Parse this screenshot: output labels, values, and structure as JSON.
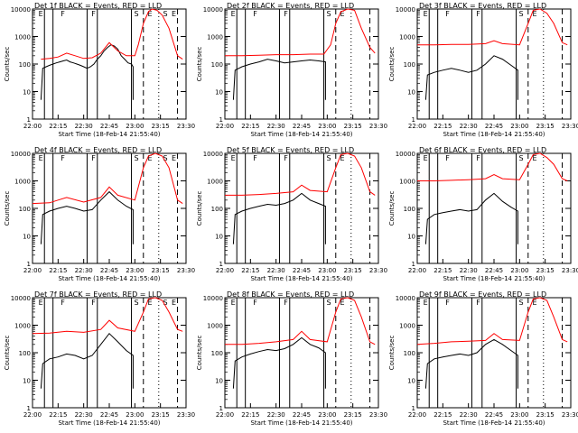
{
  "colors": {
    "events": "#000000",
    "lld": "#ff0000",
    "background": "#ffffff",
    "axes": "#000000"
  },
  "chart_data": [
    {
      "type": "line",
      "title": "Det 1f BLACK = Events, RED = LLD",
      "xlabel": "Start Time (18-Feb-14 21:55:40)",
      "ylabel": "Counts/sec",
      "yscale": "log",
      "ylim": [
        1,
        10000
      ],
      "xlim": [
        "22:00",
        "23:30"
      ],
      "xticks": [
        "22:00",
        "22:15",
        "22:30",
        "22:45",
        "23:00",
        "23:15",
        "23:30"
      ],
      "yticks": [
        "1",
        "10",
        "100",
        "1000",
        "10000"
      ],
      "annotations": [
        "E",
        "F",
        "F",
        "S",
        "E",
        "S",
        "E"
      ],
      "series": [
        {
          "name": "Events",
          "color": "#000000",
          "x": [
            "22:05",
            "22:06",
            "22:08",
            "22:10",
            "22:12",
            "22:14",
            "22:16",
            "22:18",
            "22:20",
            "22:22",
            "22:24",
            "22:26",
            "22:28",
            "22:30",
            "22:32",
            "22:34",
            "22:36",
            "22:38",
            "22:40",
            "22:42",
            "22:44",
            "22:46",
            "22:48",
            "22:50",
            "22:52",
            "22:54",
            "22:56",
            "22:58",
            "22:59",
            "22:59"
          ],
          "y": [
            5,
            70,
            80,
            90,
            100,
            110,
            120,
            130,
            140,
            120,
            110,
            100,
            90,
            80,
            70,
            80,
            100,
            150,
            200,
            300,
            400,
            500,
            450,
            350,
            200,
            150,
            110,
            100,
            80,
            5
          ]
        },
        {
          "name": "LLD",
          "color": "#ff0000",
          "x": [
            "22:05",
            "22:10",
            "22:15",
            "22:20",
            "22:25",
            "22:30",
            "22:35",
            "22:40",
            "22:45",
            "22:50",
            "22:55",
            "23:00",
            "23:02",
            "23:05",
            "23:08",
            "23:10",
            "23:13",
            "23:16",
            "23:20",
            "23:25",
            "23:28"
          ],
          "y": [
            150,
            160,
            180,
            250,
            200,
            160,
            170,
            250,
            600,
            300,
            200,
            200,
            500,
            3000,
            8000,
            10000,
            9000,
            6000,
            2000,
            200,
            150
          ]
        }
      ]
    },
    {
      "type": "line",
      "title": "Det 2f BLACK = Events, RED = LLD",
      "xlabel": "Start Time (18-Feb-14 21:55:40)",
      "ylabel": "Counts/sec",
      "yscale": "log",
      "ylim": [
        1,
        10000
      ],
      "xlim": [
        "22:00",
        "23:30"
      ],
      "xticks": [
        "22:00",
        "22:15",
        "22:30",
        "22:45",
        "23:00",
        "23:15",
        "23:30"
      ],
      "yticks": [
        "1",
        "10",
        "100",
        "1000",
        "10000"
      ],
      "annotations": [
        "E",
        "F",
        "F",
        "S",
        "E"
      ],
      "series": [
        {
          "name": "Events",
          "color": "#000000",
          "x": [
            "22:05",
            "22:06",
            "22:10",
            "22:15",
            "22:20",
            "22:25",
            "22:30",
            "22:35",
            "22:40",
            "22:45",
            "22:50",
            "22:55",
            "22:59",
            "22:59"
          ],
          "y": [
            5,
            60,
            80,
            100,
            120,
            150,
            130,
            110,
            120,
            130,
            140,
            130,
            120,
            5
          ]
        },
        {
          "name": "LLD",
          "color": "#ff0000",
          "x": [
            "22:00",
            "22:10",
            "22:20",
            "22:30",
            "22:40",
            "22:50",
            "22:58",
            "23:02",
            "23:05",
            "23:08",
            "23:12",
            "23:16",
            "23:20",
            "23:25",
            "23:28"
          ],
          "y": [
            200,
            200,
            210,
            220,
            220,
            230,
            230,
            500,
            3000,
            8000,
            10000,
            9000,
            2000,
            400,
            250
          ]
        }
      ]
    },
    {
      "type": "line",
      "title": "Det 3f BLACK = Events, RED = LLD",
      "xlabel": "Start Time (18-Feb-14 21:55:40)",
      "ylabel": "Counts/sec",
      "yscale": "log",
      "ylim": [
        1,
        10000
      ],
      "xlim": [
        "22:00",
        "23:30"
      ],
      "xticks": [
        "22:00",
        "22:15",
        "22:30",
        "22:45",
        "23:00",
        "23:15",
        "23:30"
      ],
      "yticks": [
        "1",
        "10",
        "100",
        "1000",
        "10000"
      ],
      "annotations": [
        "E",
        "F",
        "F",
        "S",
        "E"
      ],
      "series": [
        {
          "name": "Events",
          "color": "#000000",
          "x": [
            "22:05",
            "22:06",
            "22:10",
            "22:15",
            "22:20",
            "22:25",
            "22:30",
            "22:35",
            "22:40",
            "22:45",
            "22:50",
            "22:55",
            "22:59",
            "22:59"
          ],
          "y": [
            5,
            40,
            50,
            60,
            70,
            60,
            50,
            60,
            100,
            200,
            150,
            90,
            60,
            5
          ]
        },
        {
          "name": "LLD",
          "color": "#ff0000",
          "x": [
            "22:00",
            "22:10",
            "22:20",
            "22:30",
            "22:40",
            "22:45",
            "22:50",
            "23:00",
            "23:05",
            "23:08",
            "23:12",
            "23:16",
            "23:20",
            "23:25",
            "23:28"
          ],
          "y": [
            500,
            500,
            520,
            520,
            550,
            700,
            550,
            500,
            3000,
            9000,
            10000,
            7000,
            3000,
            600,
            500
          ]
        }
      ]
    },
    {
      "type": "line",
      "title": "Det 4f BLACK = Events, RED = LLD",
      "xlabel": "Start Time (18-Feb-14 21:55:40)",
      "ylabel": "Counts/sec",
      "yscale": "log",
      "ylim": [
        1,
        10000
      ],
      "xlim": [
        "22:00",
        "23:30"
      ],
      "xticks": [
        "22:00",
        "22:15",
        "22:30",
        "22:45",
        "23:00",
        "23:15",
        "23:30"
      ],
      "yticks": [
        "1",
        "10",
        "100",
        "1000",
        "10000"
      ],
      "annotations": [
        "E",
        "F",
        "F",
        "S",
        "E",
        "S",
        "E"
      ],
      "series": [
        {
          "name": "Events",
          "color": "#000000",
          "x": [
            "22:05",
            "22:06",
            "22:10",
            "22:15",
            "22:20",
            "22:25",
            "22:30",
            "22:35",
            "22:40",
            "22:45",
            "22:50",
            "22:55",
            "22:59",
            "22:59"
          ],
          "y": [
            5,
            60,
            80,
            100,
            120,
            100,
            80,
            90,
            200,
            400,
            200,
            120,
            90,
            5
          ]
        },
        {
          "name": "LLD",
          "color": "#ff0000",
          "x": [
            "22:00",
            "22:10",
            "22:15",
            "22:20",
            "22:30",
            "22:40",
            "22:45",
            "22:50",
            "23:00",
            "23:05",
            "23:08",
            "23:12",
            "23:16",
            "23:20",
            "23:25",
            "23:28"
          ],
          "y": [
            150,
            160,
            200,
            250,
            170,
            250,
            600,
            300,
            200,
            3000,
            8000,
            10000,
            8000,
            3000,
            200,
            150
          ]
        }
      ]
    },
    {
      "type": "line",
      "title": "Det 5f BLACK = Events, RED = LLD",
      "xlabel": "Start Time (18-Feb-14 21:55:40)",
      "ylabel": "Counts/sec",
      "yscale": "log",
      "ylim": [
        1,
        10000
      ],
      "xlim": [
        "22:00",
        "23:30"
      ],
      "xticks": [
        "22:00",
        "22:15",
        "22:30",
        "22:45",
        "23:00",
        "23:15",
        "23:30"
      ],
      "yticks": [
        "1",
        "10",
        "100",
        "1000",
        "10000"
      ],
      "annotations": [
        "E",
        "F",
        "F",
        "S",
        "E"
      ],
      "series": [
        {
          "name": "Events",
          "color": "#000000",
          "x": [
            "22:05",
            "22:06",
            "22:10",
            "22:15",
            "22:20",
            "22:25",
            "22:30",
            "22:35",
            "22:40",
            "22:45",
            "22:50",
            "22:55",
            "22:59",
            "22:59"
          ],
          "y": [
            5,
            60,
            80,
            100,
            120,
            140,
            130,
            150,
            200,
            350,
            200,
            150,
            120,
            5
          ]
        },
        {
          "name": "LLD",
          "color": "#ff0000",
          "x": [
            "22:00",
            "22:10",
            "22:20",
            "22:30",
            "22:40",
            "22:45",
            "22:50",
            "23:00",
            "23:05",
            "23:08",
            "23:12",
            "23:16",
            "23:20",
            "23:25",
            "23:28"
          ],
          "y": [
            300,
            300,
            320,
            350,
            400,
            700,
            450,
            400,
            3000,
            9000,
            10000,
            8000,
            3000,
            400,
            300
          ]
        }
      ]
    },
    {
      "type": "line",
      "title": "Det 6f BLACK = Events, RED = LLD",
      "xlabel": "Start Time (18-Feb-14 21:55:40)",
      "ylabel": "Counts/sec",
      "yscale": "log",
      "ylim": [
        1,
        10000
      ],
      "xlim": [
        "22:00",
        "23:30"
      ],
      "xticks": [
        "22:00",
        "22:15",
        "22:30",
        "22:45",
        "23:00",
        "23:15",
        "23:30"
      ],
      "yticks": [
        "1",
        "10",
        "100",
        "1000",
        "10000"
      ],
      "annotations": [
        "E",
        "F",
        "F",
        "S",
        "E"
      ],
      "series": [
        {
          "name": "Events",
          "color": "#000000",
          "x": [
            "22:05",
            "22:06",
            "22:10",
            "22:15",
            "22:20",
            "22:25",
            "22:30",
            "22:35",
            "22:40",
            "22:45",
            "22:50",
            "22:55",
            "22:59",
            "22:59"
          ],
          "y": [
            5,
            40,
            60,
            70,
            80,
            90,
            80,
            90,
            200,
            350,
            180,
            110,
            80,
            5
          ]
        },
        {
          "name": "LLD",
          "color": "#ff0000",
          "x": [
            "22:00",
            "22:10",
            "22:20",
            "22:30",
            "22:40",
            "22:45",
            "22:50",
            "23:00",
            "23:05",
            "23:08",
            "23:12",
            "23:16",
            "23:20",
            "23:25",
            "23:28"
          ],
          "y": [
            1000,
            1000,
            1050,
            1100,
            1200,
            1700,
            1200,
            1100,
            4000,
            9000,
            10000,
            7000,
            4000,
            1200,
            1000
          ]
        }
      ]
    },
    {
      "type": "line",
      "title": "Det 7f BLACK = Events, RED = LLD",
      "xlabel": "Start Time (18-Feb-14 21:55:40)",
      "ylabel": "Counts/sec",
      "yscale": "log",
      "ylim": [
        1,
        10000
      ],
      "xlim": [
        "22:00",
        "23:30"
      ],
      "xticks": [
        "22:00",
        "22:15",
        "22:30",
        "22:45",
        "23:00",
        "23:15",
        "23:30"
      ],
      "yticks": [
        "1",
        "10",
        "100",
        "1000",
        "10000"
      ],
      "annotations": [
        "E",
        "F",
        "F",
        "S",
        "E",
        "S",
        "E"
      ],
      "series": [
        {
          "name": "Events",
          "color": "#000000",
          "x": [
            "22:05",
            "22:06",
            "22:10",
            "22:15",
            "22:20",
            "22:25",
            "22:30",
            "22:35",
            "22:40",
            "22:45",
            "22:50",
            "22:55",
            "22:59",
            "22:59"
          ],
          "y": [
            5,
            40,
            60,
            70,
            90,
            80,
            60,
            80,
            200,
            500,
            250,
            120,
            80,
            5
          ]
        },
        {
          "name": "LLD",
          "color": "#ff0000",
          "x": [
            "22:00",
            "22:10",
            "22:20",
            "22:30",
            "22:40",
            "22:45",
            "22:50",
            "23:00",
            "23:05",
            "23:08",
            "23:12",
            "23:16",
            "23:20",
            "23:25",
            "23:28"
          ],
          "y": [
            500,
            520,
            600,
            550,
            700,
            1500,
            800,
            600,
            3000,
            9000,
            10000,
            8000,
            3000,
            700,
            600
          ]
        }
      ]
    },
    {
      "type": "line",
      "title": "Det 8f BLACK = Events, RED = LLD",
      "xlabel": "Start Time (18-Feb-14 21:55:40)",
      "ylabel": "Counts/sec",
      "yscale": "log",
      "ylim": [
        1,
        10000
      ],
      "xlim": [
        "22:00",
        "23:30"
      ],
      "xticks": [
        "22:00",
        "22:15",
        "22:30",
        "22:45",
        "23:00",
        "23:15",
        "23:30"
      ],
      "yticks": [
        "1",
        "10",
        "100",
        "1000",
        "10000"
      ],
      "annotations": [
        "E",
        "F",
        "F",
        "S",
        "E"
      ],
      "series": [
        {
          "name": "Events",
          "color": "#000000",
          "x": [
            "22:05",
            "22:06",
            "22:10",
            "22:15",
            "22:20",
            "22:25",
            "22:30",
            "22:35",
            "22:40",
            "22:45",
            "22:50",
            "22:55",
            "22:59",
            "22:59"
          ],
          "y": [
            5,
            50,
            70,
            90,
            110,
            130,
            120,
            140,
            200,
            350,
            200,
            150,
            100,
            5
          ]
        },
        {
          "name": "LLD",
          "color": "#ff0000",
          "x": [
            "22:00",
            "22:10",
            "22:20",
            "22:30",
            "22:40",
            "22:45",
            "22:50",
            "23:00",
            "23:05",
            "23:08",
            "23:12",
            "23:16",
            "23:20",
            "23:25",
            "23:28"
          ],
          "y": [
            200,
            200,
            220,
            250,
            300,
            600,
            300,
            250,
            3000,
            9000,
            10000,
            8000,
            2000,
            250,
            200
          ]
        }
      ]
    },
    {
      "type": "line",
      "title": "Det 9f BLACK = Events, RED = LLD",
      "xlabel": "Start Time (18-Feb-14 21:55:40)",
      "ylabel": "Counts/sec",
      "yscale": "log",
      "ylim": [
        1,
        10000
      ],
      "xlim": [
        "22:00",
        "23:30"
      ],
      "xticks": [
        "22:00",
        "22:15",
        "22:30",
        "22:45",
        "23:00",
        "23:15",
        "23:30"
      ],
      "yticks": [
        "1",
        "10",
        "100",
        "1000",
        "10000"
      ],
      "annotations": [
        "E",
        "F",
        "F",
        "S",
        "E"
      ],
      "series": [
        {
          "name": "Events",
          "color": "#000000",
          "x": [
            "22:05",
            "22:06",
            "22:10",
            "22:15",
            "22:20",
            "22:25",
            "22:30",
            "22:35",
            "22:40",
            "22:45",
            "22:50",
            "22:55",
            "22:59",
            "22:59"
          ],
          "y": [
            5,
            40,
            60,
            70,
            80,
            90,
            80,
            100,
            200,
            300,
            200,
            120,
            80,
            5
          ]
        },
        {
          "name": "LLD",
          "color": "#ff0000",
          "x": [
            "22:00",
            "22:10",
            "22:20",
            "22:30",
            "22:40",
            "22:45",
            "22:50",
            "23:00",
            "23:05",
            "23:08",
            "23:12",
            "23:16",
            "23:20",
            "23:25",
            "23:28"
          ],
          "y": [
            200,
            220,
            250,
            260,
            280,
            500,
            300,
            280,
            3000,
            9000,
            10000,
            8000,
            2000,
            300,
            250
          ]
        }
      ]
    }
  ]
}
